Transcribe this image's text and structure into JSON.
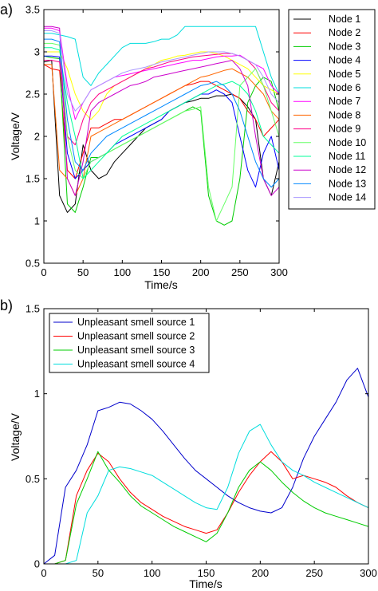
{
  "chart_data": [
    {
      "type": "line",
      "panel_label": "a)",
      "xlabel": "Time/s",
      "ylabel": "Voltage/V",
      "xlim": [
        0,
        300
      ],
      "ylim": [
        0.5,
        3.5
      ],
      "xticks": [
        "0",
        "50",
        "100",
        "150",
        "200",
        "250",
        "300"
      ],
      "yticks": [
        "0.5",
        "1",
        "1.5",
        "2",
        "2.5",
        "3",
        "3.5"
      ],
      "legend_position": "outside-right",
      "grid": false,
      "x": [
        0,
        10,
        20,
        30,
        40,
        50,
        60,
        70,
        80,
        90,
        100,
        110,
        120,
        130,
        140,
        150,
        160,
        170,
        180,
        190,
        200,
        210,
        220,
        230,
        240,
        250,
        260,
        270,
        280,
        290,
        300
      ],
      "series": [
        {
          "name": "Node 1",
          "color": "#000000",
          "values": [
            2.88,
            2.9,
            1.3,
            1.1,
            1.2,
            1.9,
            1.6,
            1.5,
            1.55,
            1.7,
            1.8,
            1.9,
            2.0,
            2.1,
            2.15,
            2.2,
            2.3,
            2.35,
            2.4,
            2.42,
            2.45,
            2.45,
            2.48,
            2.48,
            2.5,
            2.45,
            2.35,
            2.2,
            1.5,
            1.3,
            1.7
          ]
        },
        {
          "name": "Node 2",
          "color": "#ff0000",
          "values": [
            2.85,
            2.8,
            2.78,
            1.6,
            1.5,
            1.8,
            2.1,
            2.1,
            2.15,
            2.2,
            2.2,
            2.25,
            2.3,
            2.35,
            2.4,
            2.45,
            2.5,
            2.55,
            2.6,
            2.62,
            2.65,
            2.65,
            2.6,
            2.55,
            2.5,
            2.45,
            2.3,
            2.2,
            2.0,
            2.1,
            2.2
          ]
        },
        {
          "name": "Node 3",
          "color": "#00cc00",
          "values": [
            2.95,
            2.93,
            2.92,
            1.2,
            1.1,
            1.4,
            1.75,
            1.75,
            1.8,
            1.85,
            1.9,
            1.95,
            2.0,
            2.05,
            2.1,
            2.15,
            2.2,
            2.25,
            2.3,
            2.35,
            2.3,
            1.3,
            1.0,
            0.95,
            1.0,
            1.5,
            2.4,
            2.6,
            2.7,
            2.65,
            2.3
          ]
        },
        {
          "name": "Node 4",
          "color": "#0000ff",
          "values": [
            2.95,
            2.95,
            2.94,
            1.8,
            1.5,
            1.6,
            1.7,
            1.75,
            1.8,
            1.9,
            1.95,
            2.0,
            2.05,
            2.1,
            2.15,
            2.2,
            2.3,
            2.35,
            2.4,
            2.45,
            2.5,
            2.5,
            2.55,
            2.5,
            2.4,
            2.0,
            1.6,
            1.4,
            1.8,
            2.0,
            1.6
          ]
        },
        {
          "name": "Node 5",
          "color": "#ffff00",
          "values": [
            3.0,
            3.0,
            3.0,
            2.8,
            2.5,
            2.3,
            2.2,
            2.3,
            2.5,
            2.6,
            2.65,
            2.7,
            2.75,
            2.8,
            2.85,
            2.9,
            2.92,
            2.95,
            2.96,
            2.98,
            3.0,
            3.0,
            2.98,
            2.95,
            2.9,
            2.85,
            2.8,
            2.7,
            2.6,
            2.55,
            2.5
          ]
        },
        {
          "name": "Node 6",
          "color": "#00dddd",
          "values": [
            3.22,
            3.22,
            3.2,
            3.18,
            3.15,
            2.7,
            2.6,
            2.75,
            2.85,
            2.95,
            3.05,
            3.1,
            3.1,
            3.1,
            3.12,
            3.15,
            3.15,
            3.2,
            3.3,
            3.3,
            3.3,
            3.3,
            3.3,
            3.3,
            3.3,
            3.3,
            3.3,
            3.3,
            3.0,
            2.7,
            2.5
          ]
        },
        {
          "name": "Node 7",
          "color": "#ff00ff",
          "values": [
            3.28,
            3.28,
            3.25,
            2.6,
            2.2,
            2.4,
            2.55,
            2.6,
            2.65,
            2.7,
            2.72,
            2.74,
            2.76,
            2.78,
            2.8,
            2.82,
            2.84,
            2.86,
            2.88,
            2.9,
            2.9,
            2.92,
            2.94,
            2.95,
            2.95,
            2.96,
            2.9,
            2.85,
            2.8,
            2.6,
            2.5
          ]
        },
        {
          "name": "Node 8",
          "color": "#ff6600",
          "values": [
            2.85,
            2.85,
            1.6,
            1.5,
            1.3,
            1.5,
            2.0,
            2.05,
            2.1,
            2.15,
            2.2,
            2.25,
            2.3,
            2.35,
            2.4,
            2.45,
            2.5,
            2.55,
            2.6,
            2.65,
            2.7,
            2.72,
            2.75,
            2.78,
            2.8,
            2.75,
            2.7,
            2.6,
            2.5,
            2.3,
            2.2
          ]
        },
        {
          "name": "Node 9",
          "color": "#ff0088",
          "values": [
            2.9,
            2.9,
            2.88,
            2.0,
            1.9,
            2.2,
            2.4,
            2.5,
            2.55,
            2.6,
            2.65,
            2.7,
            2.75,
            2.8,
            2.82,
            2.85,
            2.88,
            2.9,
            2.92,
            2.94,
            2.95,
            2.96,
            2.97,
            2.98,
            2.98,
            2.95,
            2.9,
            2.8,
            2.6,
            2.4,
            2.3
          ]
        },
        {
          "name": "Node 10",
          "color": "#66ff66",
          "values": [
            3.1,
            3.1,
            3.08,
            2.0,
            1.6,
            1.5,
            1.7,
            1.75,
            1.8,
            1.85,
            1.9,
            1.95,
            2.0,
            2.05,
            2.1,
            2.15,
            2.2,
            2.25,
            2.3,
            2.32,
            2.35,
            1.4,
            1.0,
            1.2,
            1.4,
            2.6,
            2.7,
            2.8,
            2.6,
            2.3,
            2.0
          ]
        },
        {
          "name": "Node 11",
          "color": "#00ff99",
          "values": [
            3.05,
            3.05,
            3.02,
            2.4,
            2.0,
            1.5,
            1.6,
            1.7,
            1.8,
            1.9,
            2.0,
            2.05,
            2.1,
            2.15,
            2.2,
            2.25,
            2.3,
            2.35,
            2.4,
            2.45,
            2.5,
            2.55,
            2.6,
            2.62,
            2.65,
            2.6,
            2.5,
            2.3,
            2.0,
            1.9,
            1.8
          ]
        },
        {
          "name": "Node 12",
          "color": "#cc00cc",
          "values": [
            3.3,
            3.3,
            3.28,
            1.5,
            1.3,
            1.7,
            2.3,
            2.4,
            2.45,
            2.5,
            2.55,
            2.6,
            2.62,
            2.65,
            2.7,
            2.72,
            2.74,
            2.76,
            2.78,
            2.8,
            2.82,
            2.84,
            2.86,
            2.88,
            2.9,
            2.8,
            2.6,
            2.0,
            1.5,
            1.3,
            1.4
          ]
        },
        {
          "name": "Node 13",
          "color": "#0088ff",
          "values": [
            3.15,
            3.15,
            3.12,
            2.2,
            1.7,
            1.6,
            1.8,
            1.9,
            2.0,
            2.05,
            2.1,
            2.15,
            2.2,
            2.25,
            2.3,
            2.35,
            2.4,
            2.45,
            2.5,
            2.55,
            2.6,
            2.62,
            2.65,
            2.6,
            2.5,
            2.3,
            2.0,
            1.7,
            1.5,
            1.4,
            1.5
          ]
        },
        {
          "name": "Node 14",
          "color": "#aa99ff",
          "values": [
            3.25,
            3.25,
            3.22,
            2.5,
            2.3,
            2.4,
            2.55,
            2.6,
            2.65,
            2.7,
            2.75,
            2.78,
            2.8,
            2.82,
            2.85,
            2.88,
            2.9,
            2.92,
            2.94,
            2.96,
            2.98,
            3.0,
            3.0,
            3.0,
            2.98,
            2.95,
            2.9,
            2.85,
            2.7,
            2.5,
            2.4
          ]
        }
      ]
    },
    {
      "type": "line",
      "panel_label": "b)",
      "xlabel": "Time/s",
      "ylabel": "Voltage/V",
      "xlim": [
        0,
        300
      ],
      "ylim": [
        0,
        1.5
      ],
      "xticks": [
        "0",
        "50",
        "100",
        "150",
        "200",
        "250",
        "300"
      ],
      "yticks": [
        "0",
        "0.5",
        "1",
        "1.5"
      ],
      "legend_position": "top-left",
      "grid": false,
      "x": [
        0,
        10,
        20,
        30,
        40,
        50,
        60,
        70,
        80,
        90,
        100,
        110,
        120,
        130,
        140,
        150,
        160,
        170,
        180,
        190,
        200,
        210,
        220,
        230,
        240,
        250,
        260,
        270,
        280,
        290,
        300
      ],
      "series": [
        {
          "name": "Unpleasant smell source 1",
          "color": "#0000cc",
          "values": [
            0.0,
            0.05,
            0.45,
            0.55,
            0.7,
            0.9,
            0.92,
            0.95,
            0.94,
            0.9,
            0.85,
            0.78,
            0.7,
            0.62,
            0.55,
            0.5,
            0.45,
            0.4,
            0.36,
            0.33,
            0.31,
            0.3,
            0.33,
            0.45,
            0.62,
            0.75,
            0.85,
            0.95,
            1.08,
            1.15,
            0.98
          ]
        },
        {
          "name": "Unpleasant smell source 2",
          "color": "#ff0000",
          "values": [
            0.0,
            0.0,
            0.02,
            0.4,
            0.55,
            0.65,
            0.6,
            0.5,
            0.42,
            0.36,
            0.32,
            0.28,
            0.25,
            0.22,
            0.2,
            0.18,
            0.2,
            0.3,
            0.42,
            0.52,
            0.6,
            0.66,
            0.6,
            0.5,
            0.52,
            0.5,
            0.48,
            0.45,
            0.4,
            0.36,
            0.33
          ]
        },
        {
          "name": "Unpleasant smell source 3",
          "color": "#00cc00",
          "values": [
            0.0,
            0.0,
            0.02,
            0.35,
            0.5,
            0.66,
            0.55,
            0.48,
            0.4,
            0.34,
            0.3,
            0.26,
            0.22,
            0.19,
            0.16,
            0.13,
            0.18,
            0.3,
            0.45,
            0.55,
            0.6,
            0.55,
            0.48,
            0.42,
            0.37,
            0.33,
            0.3,
            0.28,
            0.26,
            0.24,
            0.22
          ]
        },
        {
          "name": "Unpleasant smell source 4",
          "color": "#00dddd",
          "values": [
            0.0,
            0.0,
            0.0,
            0.02,
            0.3,
            0.4,
            0.55,
            0.57,
            0.56,
            0.54,
            0.52,
            0.48,
            0.44,
            0.4,
            0.36,
            0.33,
            0.32,
            0.45,
            0.65,
            0.78,
            0.82,
            0.7,
            0.6,
            0.55,
            0.52,
            0.48,
            0.45,
            0.42,
            0.39,
            0.36,
            0.33
          ]
        }
      ]
    }
  ]
}
